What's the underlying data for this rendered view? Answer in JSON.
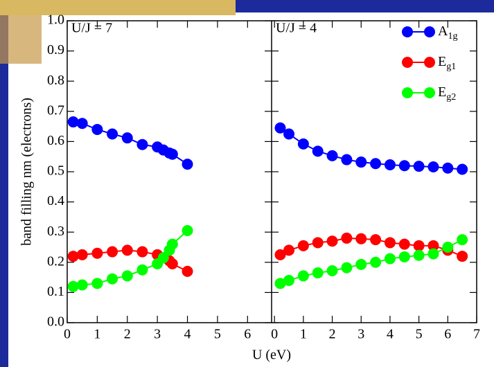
{
  "chart_data": [
    {
      "type": "line",
      "ylabel": "band filling nm (electrons)",
      "xlabel": "U (eV)",
      "annotation": "U/J = 7",
      "xlim": [
        0,
        6.8
      ],
      "xticks": [
        0,
        1,
        2,
        3,
        4,
        5,
        6
      ],
      "ylim": [
        0,
        1
      ],
      "yticks": [
        {
          "value": 0,
          "label": "0.0"
        },
        0.1,
        0.2,
        0.3,
        0.4,
        0.5,
        0.6,
        0.7,
        0.8,
        0.9,
        {
          "value": 1,
          "label": "1.0"
        }
      ],
      "x": [
        0.2,
        0.5,
        1,
        1.5,
        2,
        2.5,
        3,
        3.2,
        3.4,
        3.5,
        4
      ],
      "series": [
        {
          "color": "#0000ff",
          "values": [
            0.665,
            0.66,
            0.64,
            0.625,
            0.612,
            0.59,
            0.582,
            0.572,
            0.562,
            0.558,
            0.525
          ]
        },
        {
          "color": "#ff0000",
          "values": [
            0.22,
            0.225,
            0.23,
            0.235,
            0.24,
            0.235,
            0.225,
            0.215,
            0.205,
            0.195,
            0.17
          ]
        },
        {
          "color": "#00ff00",
          "values": [
            0.12,
            0.125,
            0.13,
            0.145,
            0.155,
            0.175,
            0.195,
            0.215,
            0.24,
            0.26,
            0.305
          ]
        }
      ]
    },
    {
      "type": "line",
      "annotation": "U/J = 4",
      "legend": "upper right",
      "xlim": [
        -0.1,
        7
      ],
      "xticks": [
        0,
        1,
        2,
        3,
        4,
        5,
        6,
        7
      ],
      "ylim": [
        0,
        1
      ],
      "x": [
        0.2,
        0.5,
        1,
        1.5,
        2,
        2.5,
        3,
        3.5,
        4,
        4.5,
        5,
        5.5,
        6,
        6.5
      ],
      "series": [
        {
          "name": "A1g",
          "color": "#0000ff",
          "values": [
            0.645,
            0.625,
            0.592,
            0.568,
            0.553,
            0.54,
            0.532,
            0.527,
            0.523,
            0.52,
            0.518,
            0.516,
            0.512,
            0.508
          ]
        },
        {
          "name": "Eg1",
          "color": "#ff0000",
          "values": [
            0.225,
            0.24,
            0.255,
            0.265,
            0.27,
            0.28,
            0.278,
            0.275,
            0.265,
            0.26,
            0.255,
            0.255,
            0.24,
            0.22
          ]
        },
        {
          "name": "Eg2",
          "color": "#00ff00",
          "values": [
            0.13,
            0.14,
            0.155,
            0.165,
            0.172,
            0.182,
            0.193,
            0.2,
            0.212,
            0.218,
            0.223,
            0.228,
            0.25,
            0.275
          ]
        }
      ]
    }
  ]
}
